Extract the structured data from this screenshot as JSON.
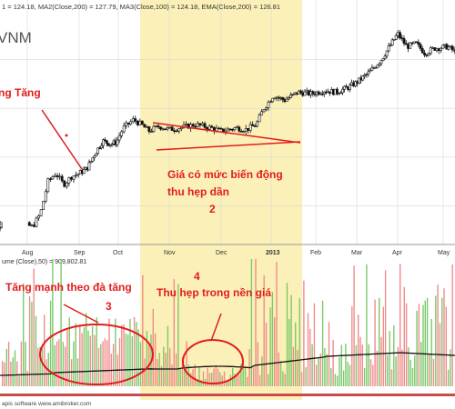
{
  "header": {
    "indicators": "1 = 124.18, MA2(Close,200) = 127.79, MA3(Close,100) = 124.18, EMA(Close,200) = 126.81",
    "symbol": "VNM"
  },
  "volume_header": "ume (Close),50) = 909,802.81",
  "footer": "apis software www.amibroker.com",
  "annotations": {
    "trend_label": "ng Tăng",
    "narrowing_text_line1": "Giá có mức biến động",
    "narrowing_text_line2": "thu hẹp dần",
    "narrowing_number": "2",
    "vol_surge_text": "Tăng mạnh theo đà tăng",
    "vol_surge_number": "3",
    "vol_shrink_number": "4",
    "vol_shrink_text": "Thu hẹp trong nền giá"
  },
  "colors": {
    "highlight": "#fbf1b8",
    "annotation_red": "#e21c1c",
    "candle": "#111111",
    "vol_up": "#7cc96a",
    "vol_down": "#f08c8c",
    "grid": "#d7d7d7"
  },
  "chart_data": [
    {
      "type": "candlestick",
      "x_ticks": [
        "Aug",
        "Sep",
        "Oct",
        "Nov",
        "Dec",
        "2013",
        "Feb",
        "Mar",
        "Apr",
        "May"
      ],
      "x_ticks_months_index": [
        0,
        1,
        2,
        3,
        4,
        5,
        6,
        7,
        8,
        9
      ],
      "close_path": [
        [
          0,
          48
        ],
        [
          0.1,
          47
        ],
        [
          0.25,
          55
        ],
        [
          0.4,
          75
        ],
        [
          0.55,
          80
        ],
        [
          0.7,
          73
        ],
        [
          0.85,
          78
        ],
        [
          1,
          80
        ],
        [
          1.2,
          83
        ],
        [
          1.4,
          92
        ],
        [
          1.6,
          100
        ],
        [
          1.8,
          98
        ],
        [
          1.95,
          99
        ],
        [
          2.1,
          108
        ],
        [
          2.3,
          113
        ],
        [
          2.45,
          110
        ],
        [
          2.6,
          106
        ],
        [
          2.8,
          109
        ],
        [
          3,
          107
        ],
        [
          3.2,
          108
        ],
        [
          3.5,
          110
        ],
        [
          3.8,
          108
        ],
        [
          4,
          106
        ],
        [
          4.3,
          108
        ],
        [
          4.5,
          107
        ],
        [
          4.7,
          110
        ],
        [
          4.85,
          120
        ],
        [
          5.05,
          128
        ],
        [
          5.3,
          125
        ],
        [
          5.6,
          130
        ],
        [
          5.9,
          129
        ],
        [
          6.2,
          131
        ],
        [
          6.5,
          130
        ],
        [
          6.8,
          133
        ],
        [
          7,
          136
        ],
        [
          7.3,
          142
        ],
        [
          7.6,
          150
        ],
        [
          7.85,
          160
        ],
        [
          8,
          166
        ],
        [
          8.2,
          158
        ],
        [
          8.4,
          160
        ],
        [
          8.6,
          154
        ],
        [
          8.8,
          157
        ],
        [
          9.1,
          158
        ],
        [
          9.5,
          152
        ],
        [
          9.8,
          156
        ]
      ],
      "volume_series": [
        {
          "name": "up",
          "color_key": "vol_up"
        },
        {
          "name": "down",
          "color_key": "vol_down"
        }
      ]
    }
  ]
}
